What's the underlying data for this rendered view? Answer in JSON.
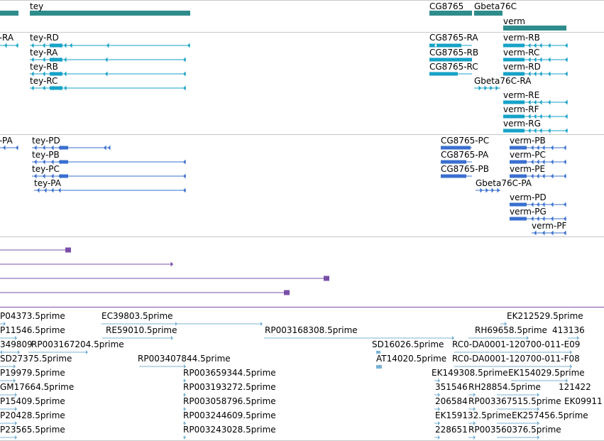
{
  "colors": {
    "gene": "#2f8c8c",
    "transcript": "#16a2c7",
    "protein": "#3a6fcf",
    "match": "#7a4fa8",
    "est": "#7bb3d6",
    "separator": "#c9c9c9"
  },
  "gene_track": {
    "genes": [
      {
        "label": "",
        "name": "left-gene"
      },
      {
        "label": "tey",
        "name": "tey"
      },
      {
        "label": "CG8765",
        "name": "cg8765"
      },
      {
        "label": "Gbeta76C",
        "name": "gbeta76c"
      },
      {
        "label": "verm",
        "name": "verm"
      }
    ]
  },
  "transcript_track": {
    "items": [
      {
        "label": "t-RA"
      },
      {
        "label": "tey-RD"
      },
      {
        "label": "tey-RA"
      },
      {
        "label": "tey-RB"
      },
      {
        "label": "tey-RC"
      },
      {
        "label": "CG8765-RA"
      },
      {
        "label": "CG8765-RB"
      },
      {
        "label": "CG8765-RC"
      },
      {
        "label": "Gbeta76C-RA"
      },
      {
        "label": "verm-RB"
      },
      {
        "label": "verm-RC"
      },
      {
        "label": "verm-RD"
      },
      {
        "label": "verm-RE"
      },
      {
        "label": "verm-RF"
      },
      {
        "label": "verm-RG"
      }
    ]
  },
  "protein_track": {
    "items": [
      {
        "label": "t-PA"
      },
      {
        "label": "tey-PD"
      },
      {
        "label": "tey-PB"
      },
      {
        "label": "tey-PC"
      },
      {
        "label": "tey-PA"
      },
      {
        "label": "CG8765-PC"
      },
      {
        "label": "CG8765-PA"
      },
      {
        "label": "CG8765-PB"
      },
      {
        "label": "Gbeta76C-PA"
      },
      {
        "label": "verm-PB"
      },
      {
        "label": "verm-PC"
      },
      {
        "label": "verm-PE"
      },
      {
        "label": "verm-PD"
      },
      {
        "label": "verm-PG"
      },
      {
        "label": "verm-PF"
      }
    ]
  },
  "est_track": {
    "items": [
      {
        "label": "P04373.5prime"
      },
      {
        "label": "EC39803.5prime"
      },
      {
        "label": "EK212529.5prime"
      },
      {
        "label": "P11546.5prime"
      },
      {
        "label": "RE59010.5prime"
      },
      {
        "label": "RP003168308.5prime"
      },
      {
        "label": "RH69658.5prime"
      },
      {
        "label": "413136"
      },
      {
        "label": "349809"
      },
      {
        "label": "RP003167204.5prime"
      },
      {
        "label": "SD16026.5prime"
      },
      {
        "label": "RC0-DA0001-120700-011-E09"
      },
      {
        "label": "SD27375.5prime"
      },
      {
        "label": "RP003407844.5prime"
      },
      {
        "label": "AT14020.5prime"
      },
      {
        "label": "RC0-DA0001-120700-011-F08"
      },
      {
        "label": "P19979.5prime"
      },
      {
        "label": "RP003659344.5prime"
      },
      {
        "label": "EK149308.5prime"
      },
      {
        "label": "EK154029.5prime"
      },
      {
        "label": "GM17664.5prime"
      },
      {
        "label": "RP003193272.5prime"
      },
      {
        "label": "351546"
      },
      {
        "label": "RH28854.5prime"
      },
      {
        "label": "121422"
      },
      {
        "label": "P15409.5prime"
      },
      {
        "label": "RP003058796.5prime"
      },
      {
        "label": "206584"
      },
      {
        "label": "RP003367515.5prime"
      },
      {
        "label": "EK09911"
      },
      {
        "label": "P20428.5prime"
      },
      {
        "label": "RP003244609.5prime"
      },
      {
        "label": "EK159132.5prime"
      },
      {
        "label": "EK257456.5prime"
      },
      {
        "label": "P23565.5prime"
      },
      {
        "label": "RP003243028.5prime"
      },
      {
        "label": "228651"
      },
      {
        "label": "RP003560376.5prime"
      }
    ]
  }
}
